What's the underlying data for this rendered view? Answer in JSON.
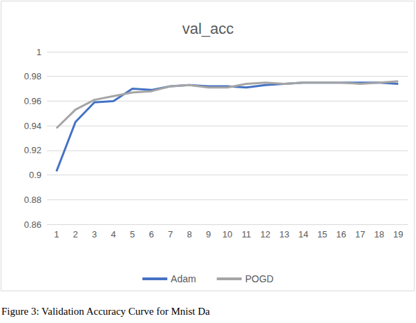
{
  "chart_data": {
    "type": "line",
    "title": "val_acc",
    "annotations": [
      "Figure 3: Validation Accuracy Curve for Mnist Da"
    ],
    "categories": [
      1,
      2,
      3,
      4,
      5,
      6,
      7,
      8,
      9,
      10,
      11,
      12,
      13,
      14,
      15,
      16,
      17,
      18,
      19
    ],
    "series": [
      {
        "name": "Adam",
        "color": "#4472c4",
        "values": [
          0.903,
          0.943,
          0.959,
          0.96,
          0.97,
          0.969,
          0.972,
          0.973,
          0.972,
          0.972,
          0.971,
          0.973,
          0.974,
          0.975,
          0.975,
          0.975,
          0.975,
          0.975,
          0.974
        ]
      },
      {
        "name": "POGD",
        "color": "#a5a5a5",
        "values": [
          0.938,
          0.953,
          0.961,
          0.964,
          0.967,
          0.968,
          0.972,
          0.973,
          0.971,
          0.971,
          0.974,
          0.975,
          0.974,
          0.975,
          0.975,
          0.975,
          0.974,
          0.975,
          0.976
        ]
      }
    ],
    "ylim": [
      0.86,
      1
    ],
    "yticks": [
      0.86,
      0.88,
      0.9,
      0.92,
      0.94,
      0.96,
      0.98,
      1
    ],
    "grid": true,
    "legend": "bottom"
  }
}
